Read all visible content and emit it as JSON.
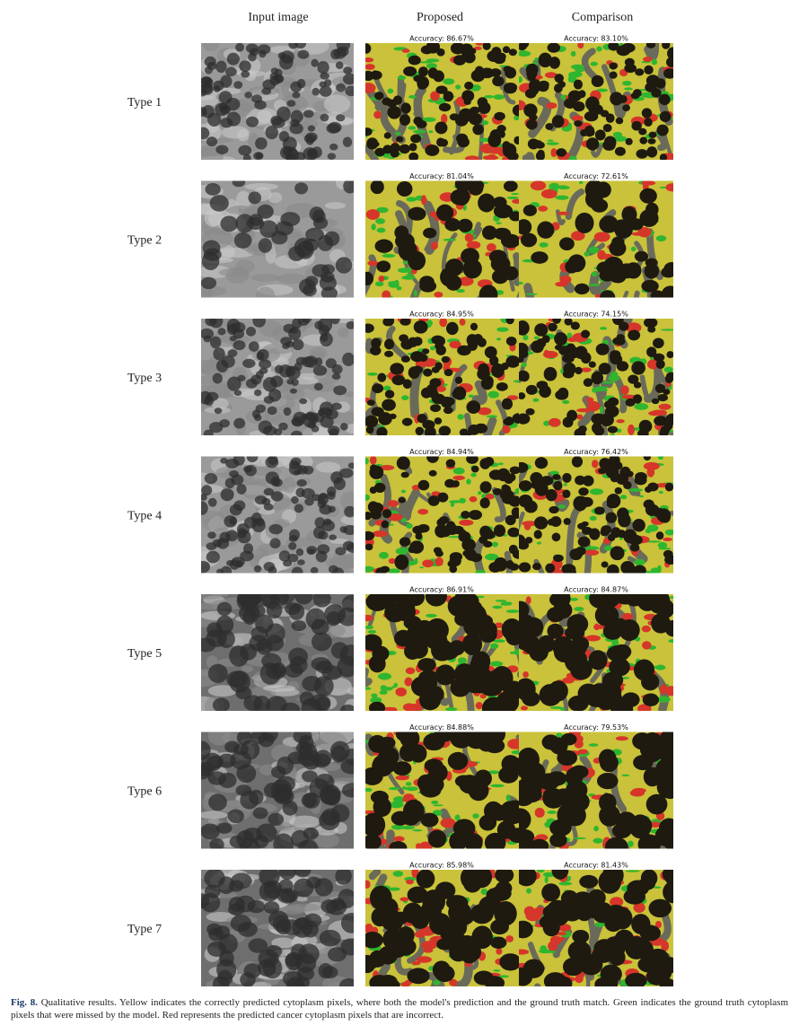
{
  "figure": {
    "headers": [
      "Input image",
      "Proposed",
      "Comparison"
    ],
    "rows": [
      {
        "label": "Type 1",
        "proposed": "Accuracy: 86.67%",
        "comparison": "Accuracy: 83.10%"
      },
      {
        "label": "Type 2",
        "proposed": "Accuracy: 81.04%",
        "comparison": "Accuracy: 72.61%"
      },
      {
        "label": "Type 3",
        "proposed": "Accuracy: 84.95%",
        "comparison": "Accuracy: 74.15%"
      },
      {
        "label": "Type 4",
        "proposed": "Accuracy: 84.94%",
        "comparison": "Accuracy: 76.42%"
      },
      {
        "label": "Type 5",
        "proposed": "Accuracy: 86.91%",
        "comparison": "Accuracy: 84.87%"
      },
      {
        "label": "Type 6",
        "proposed": "Accuracy: 84.88%",
        "comparison": "Accuracy: 79.53%"
      },
      {
        "label": "Type 7",
        "proposed": "Accuracy: 85.98%",
        "comparison": "Accuracy: 81.43%"
      }
    ]
  },
  "caption": {
    "label": "Fig. 8.",
    "text": "Qualitative results. Yellow indicates the correctly predicted cytoplasm pixels, where both the model's prediction and the ground truth match. Green indicates the ground truth cytoplasm pixels that were missed by the model. Red represents the predicted cancer cytoplasm pixels that are incorrect."
  }
}
